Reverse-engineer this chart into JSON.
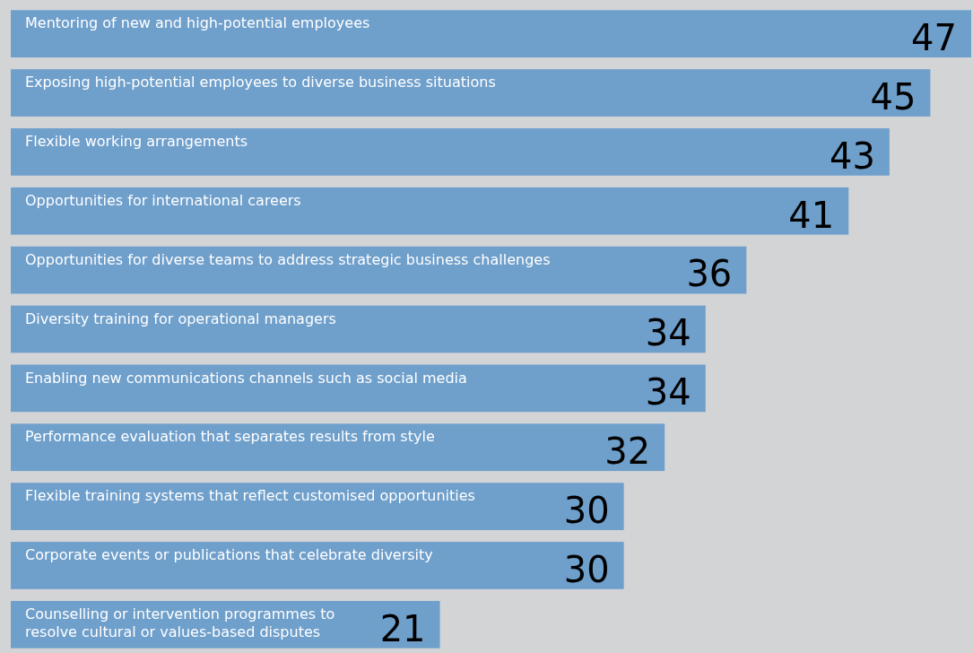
{
  "chart_data": {
    "type": "bar",
    "orientation": "horizontal",
    "data_labels": true,
    "color": "#6f9fcb",
    "categories": [
      "Mentoring of new and high-potential employees",
      "Exposing high-potential employees to diverse business situations",
      "Flexible working arrangements",
      "Opportunities for international careers",
      "Opportunities for diverse teams to address strategic business challenges",
      "Diversity training for operational managers",
      "Enabling new communications channels such as social media",
      "Performance evaluation that separates results from style",
      "Flexible training systems that reflect customised opportunities",
      "Corporate events or publications that celebrate diversity",
      "Counselling or intervention programmes to resolve cultural or values-based disputes"
    ],
    "values": [
      47,
      45,
      43,
      41,
      36,
      34,
      34,
      32,
      30,
      30,
      21
    ]
  }
}
